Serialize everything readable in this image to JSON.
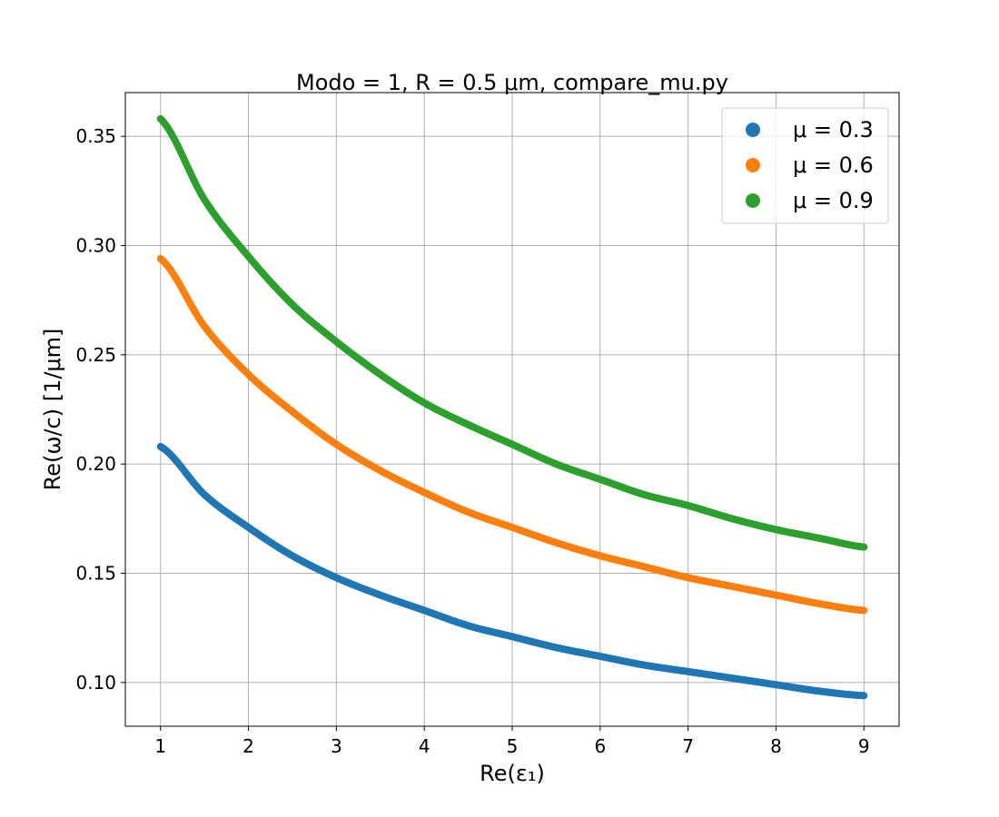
{
  "chart_data": {
    "type": "scatter",
    "title": "Modo = 1, R = 0.5 μm, compare_mu.py",
    "xlabel": "Re(ε₁)",
    "ylabel": "Re(ω/c) [1/μm]",
    "xlim": [
      0.6,
      9.4
    ],
    "ylim": [
      0.08,
      0.37
    ],
    "xticks": [
      1,
      2,
      3,
      4,
      5,
      6,
      7,
      8,
      9
    ],
    "xtick_labels": [
      "1",
      "2",
      "3",
      "4",
      "5",
      "6",
      "7",
      "8",
      "9"
    ],
    "yticks": [
      0.1,
      0.15,
      0.2,
      0.25,
      0.3,
      0.35
    ],
    "ytick_labels": [
      "0.10",
      "0.15",
      "0.20",
      "0.25",
      "0.30",
      "0.35"
    ],
    "grid": true,
    "legend_position": "top-right",
    "x": [
      1,
      1.5,
      2,
      2.5,
      3,
      3.5,
      4,
      4.5,
      5,
      5.5,
      6,
      6.5,
      7,
      7.5,
      8,
      8.5,
      9
    ],
    "series": [
      {
        "name": "μ = 0.3",
        "color": "#1f77b4",
        "values": [
          0.208,
          0.186,
          0.171,
          0.158,
          0.148,
          0.14,
          0.133,
          0.126,
          0.121,
          0.116,
          0.112,
          0.108,
          0.105,
          0.102,
          0.099,
          0.096,
          0.094
        ]
      },
      {
        "name": "μ = 0.6",
        "color": "#ff7f0e",
        "values": [
          0.294,
          0.263,
          0.241,
          0.224,
          0.209,
          0.197,
          0.187,
          0.178,
          0.171,
          0.164,
          0.158,
          0.153,
          0.148,
          0.144,
          0.14,
          0.136,
          0.133
        ]
      },
      {
        "name": "μ = 0.9",
        "color": "#2ca02c",
        "values": [
          0.358,
          0.321,
          0.295,
          0.273,
          0.256,
          0.241,
          0.228,
          0.218,
          0.209,
          0.2,
          0.193,
          0.186,
          0.181,
          0.175,
          0.17,
          0.166,
          0.162
        ]
      }
    ]
  }
}
